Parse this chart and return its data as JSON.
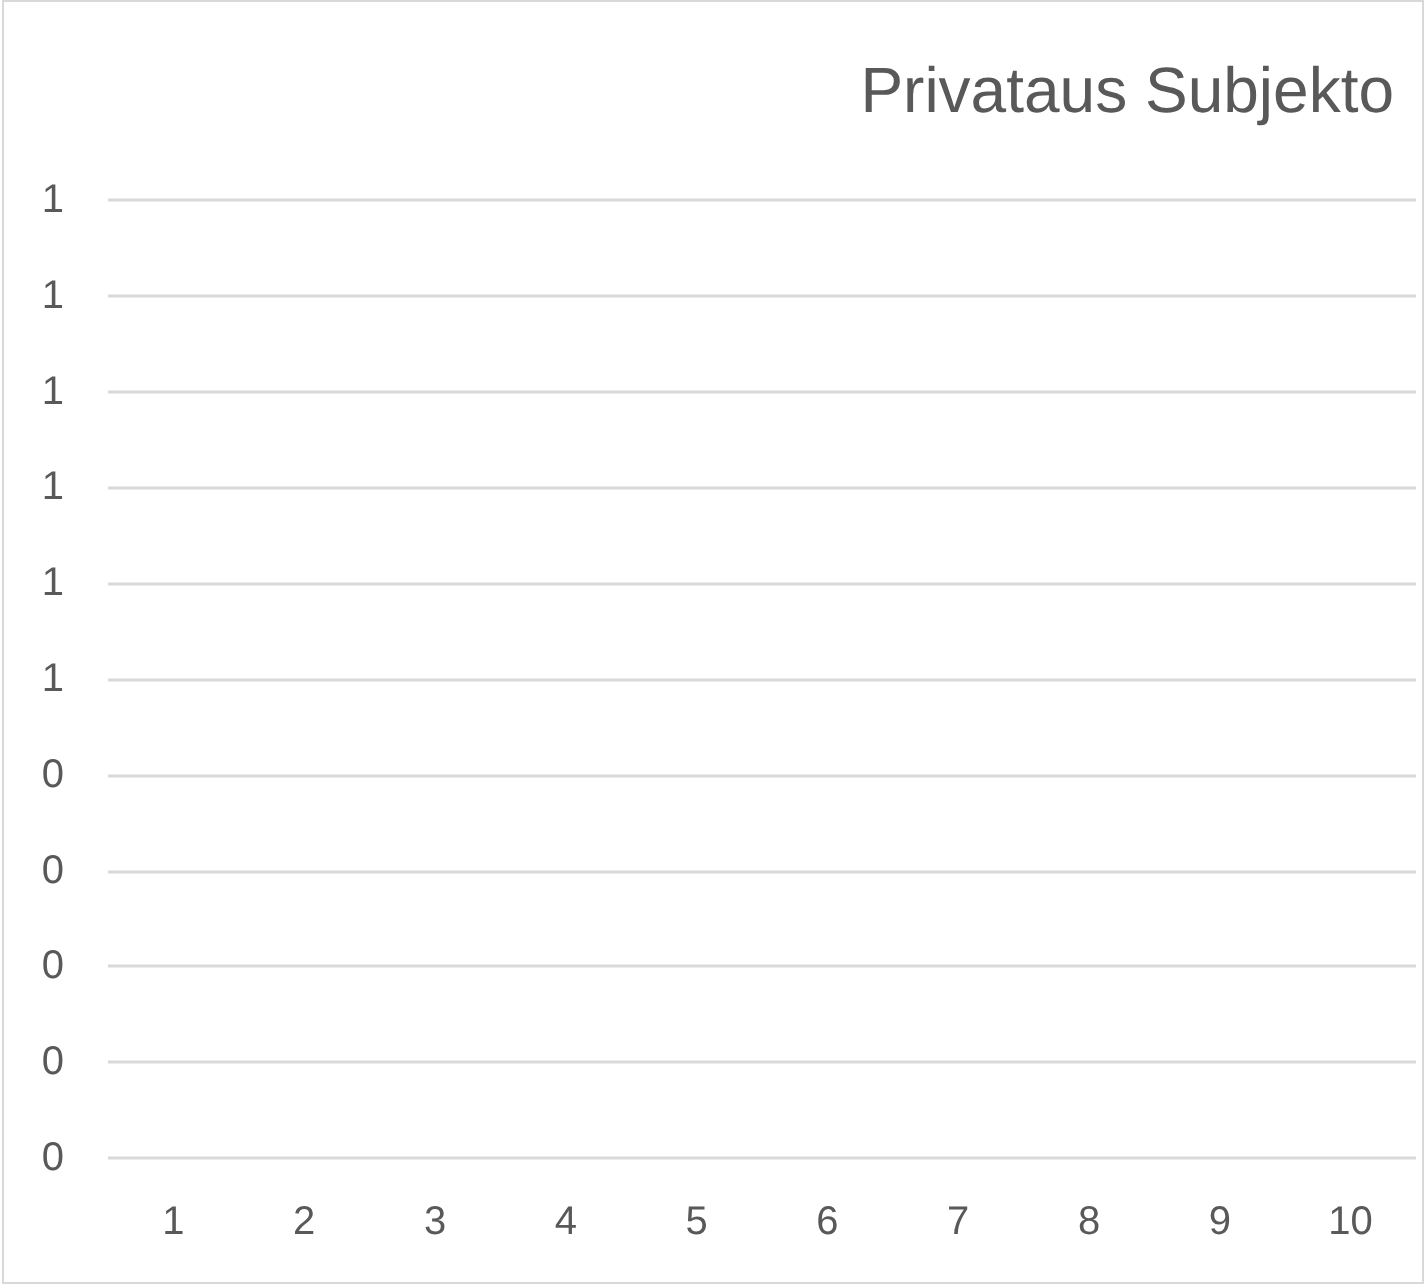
{
  "chart_data": {
    "type": "bar",
    "title": "Privataus Subjekto",
    "categories": [
      "1",
      "2",
      "3",
      "4",
      "5",
      "6",
      "7",
      "8",
      "9",
      "10"
    ],
    "values": [
      null,
      null,
      null,
      null,
      null,
      null,
      null,
      null,
      null,
      null
    ],
    "ylim": [
      0,
      1
    ],
    "yticks": [
      0,
      {
        "value": 0.1,
        "label": "0"
      },
      {
        "value": 0.2,
        "label": "0"
      },
      {
        "value": 0.3,
        "label": "0"
      },
      {
        "value": 0.4,
        "label": "0"
      },
      {
        "value": 0.5,
        "label": "1"
      },
      {
        "value": 0.6,
        "label": "1"
      },
      {
        "value": 0.7,
        "label": "1"
      },
      {
        "value": 0.8,
        "label": "1"
      },
      {
        "value": 0.9,
        "label": "1"
      },
      1
    ],
    "grid": "y"
  }
}
